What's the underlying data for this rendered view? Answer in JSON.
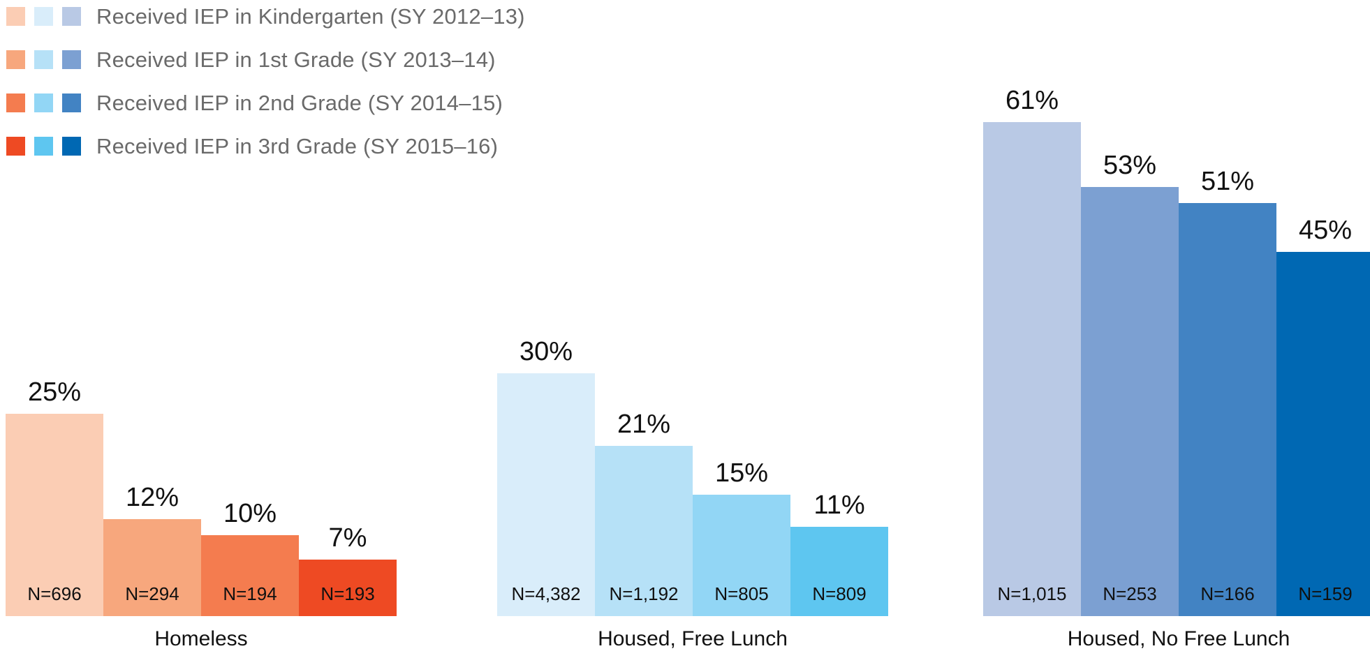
{
  "legend": {
    "rows": [
      {
        "label": "Received IEP in Kindergarten (SY 2012–13)",
        "swatches": [
          "#FBCDB4",
          "#D9EDFA",
          "#B9C9E5"
        ]
      },
      {
        "label": "Received IEP in 1st Grade (SY 2013–14)",
        "swatches": [
          "#F7A77D",
          "#B6E1F7",
          "#7CA0D2"
        ]
      },
      {
        "label": "Received IEP in 2nd Grade (SY 2014–15)",
        "swatches": [
          "#F47C4F",
          "#92D6F5",
          "#4283C3"
        ]
      },
      {
        "label": "Received IEP in 3rd Grade (SY 2015–16)",
        "swatches": [
          "#EE4A23",
          "#5EC6F0",
          "#0068B3"
        ]
      }
    ]
  },
  "chart_data": {
    "type": "bar",
    "title": "",
    "xlabel": "",
    "ylabel": "",
    "unit": "percent",
    "ylim": [
      0,
      65
    ],
    "grid": false,
    "axes_shown": false,
    "legend_position": "top-left",
    "series_labels": [
      "Received IEP in Kindergarten (SY 2012–13)",
      "Received IEP in 1st Grade (SY 2013–14)",
      "Received IEP in 2nd Grade (SY 2014–15)",
      "Received IEP in 3rd Grade (SY 2015–16)"
    ],
    "groups": [
      {
        "label": "Homeless",
        "bars": [
          {
            "series": "Received IEP in Kindergarten (SY 2012–13)",
            "value": 25,
            "value_label": "25%",
            "n": 696,
            "n_label": "N=696",
            "color": "#FBCDB4"
          },
          {
            "series": "Received IEP in 1st Grade (SY 2013–14)",
            "value": 12,
            "value_label": "12%",
            "n": 294,
            "n_label": "N=294",
            "color": "#F7A77D"
          },
          {
            "series": "Received IEP in 2nd Grade (SY 2014–15)",
            "value": 10,
            "value_label": "10%",
            "n": 194,
            "n_label": "N=194",
            "color": "#F47C4F"
          },
          {
            "series": "Received IEP in 3rd Grade (SY 2015–16)",
            "value": 7,
            "value_label": "7%",
            "n": 193,
            "n_label": "N=193",
            "color": "#EE4A23"
          }
        ]
      },
      {
        "label": "Housed, Free Lunch",
        "bars": [
          {
            "series": "Received IEP in Kindergarten (SY 2012–13)",
            "value": 30,
            "value_label": "30%",
            "n": 4382,
            "n_label": "N=4,382",
            "color": "#D9EDFA"
          },
          {
            "series": "Received IEP in 1st Grade (SY 2013–14)",
            "value": 21,
            "value_label": "21%",
            "n": 1192,
            "n_label": "N=1,192",
            "color": "#B6E1F7"
          },
          {
            "series": "Received IEP in 2nd Grade (SY 2014–15)",
            "value": 15,
            "value_label": "15%",
            "n": 805,
            "n_label": "N=805",
            "color": "#92D6F5"
          },
          {
            "series": "Received IEP in 3rd Grade (SY 2015–16)",
            "value": 11,
            "value_label": "11%",
            "n": 809,
            "n_label": "N=809",
            "color": "#5EC6F0"
          }
        ]
      },
      {
        "label": "Housed, No Free Lunch",
        "bars": [
          {
            "series": "Received IEP in Kindergarten (SY 2012–13)",
            "value": 61,
            "value_label": "61%",
            "n": 1015,
            "n_label": "N=1,015",
            "color": "#B9C9E5"
          },
          {
            "series": "Received IEP in 1st Grade (SY 2013–14)",
            "value": 53,
            "value_label": "53%",
            "n": 253,
            "n_label": "N=253",
            "color": "#7CA0D2"
          },
          {
            "series": "Received IEP in 2nd Grade (SY 2014–15)",
            "value": 51,
            "value_label": "51%",
            "n": 166,
            "n_label": "N=166",
            "color": "#4283C3"
          },
          {
            "series": "Received IEP in 3rd Grade (SY 2015–16)",
            "value": 45,
            "value_label": "45%",
            "n": 159,
            "n_label": "N=159",
            "color": "#0068B3"
          }
        ]
      }
    ]
  },
  "colors": {
    "background": "#FFFFFF",
    "legend_text": "#6A6A6A",
    "label_text": "#111111"
  }
}
